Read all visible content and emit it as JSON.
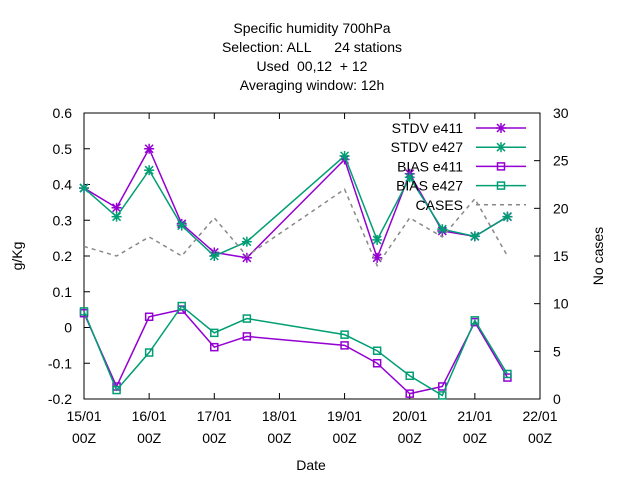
{
  "chart_data": {
    "type": "line",
    "title_lines": [
      "Specific humidity 700hPa",
      "Selection: ALL      24 stations",
      "Used  00,12  + 12",
      "Averaging window: 12h"
    ],
    "xlabel": "Date",
    "ylabel": "g/Kg",
    "y2label": "No cases",
    "x_ticks": [
      {
        "x": 0,
        "line1": "15/01",
        "line2": "00Z"
      },
      {
        "x": 1,
        "line1": "16/01",
        "line2": "00Z"
      },
      {
        "x": 2,
        "line1": "17/01",
        "line2": "00Z"
      },
      {
        "x": 3,
        "line1": "18/01",
        "line2": "00Z"
      },
      {
        "x": 4,
        "line1": "19/01",
        "line2": "00Z"
      },
      {
        "x": 5,
        "line1": "20/01",
        "line2": "00Z"
      },
      {
        "x": 6,
        "line1": "21/01",
        "line2": "00Z"
      },
      {
        "x": 7,
        "line1": "22/01",
        "line2": "00Z"
      }
    ],
    "xlim": [
      0,
      7
    ],
    "ylim": [
      -0.2,
      0.6
    ],
    "y_ticks": [
      "-0.2",
      "-0.1",
      "0",
      "0.1",
      "0.2",
      "0.3",
      "0.4",
      "0.5",
      "0.6"
    ],
    "y2lim": [
      0,
      30
    ],
    "y2_ticks": [
      "0",
      "5",
      "10",
      "15",
      "20",
      "25",
      "30"
    ],
    "legend_position": "top-right",
    "series": [
      {
        "name": "STDV e411",
        "color": "#9400d3",
        "marker": "star",
        "axis": "y",
        "x": [
          0,
          0.5,
          1,
          1.5,
          2,
          2.5,
          4,
          4.5,
          5,
          5.5,
          6,
          6.5
        ],
        "y": [
          0.39,
          0.335,
          0.5,
          0.29,
          0.21,
          0.195,
          0.47,
          0.195,
          0.43,
          0.27,
          0.255,
          0.31
        ]
      },
      {
        "name": "STDV e427",
        "color": "#009e73",
        "marker": "star",
        "axis": "y",
        "x": [
          0,
          0.5,
          1,
          1.5,
          2,
          2.5,
          4,
          4.5,
          5,
          5.5,
          6,
          6.5
        ],
        "y": [
          0.39,
          0.31,
          0.44,
          0.285,
          0.2,
          0.24,
          0.48,
          0.245,
          0.42,
          0.275,
          0.255,
          0.31
        ]
      },
      {
        "name": "BIAS e411",
        "color": "#9400d3",
        "marker": "square",
        "axis": "y",
        "x": [
          0,
          0.5,
          1,
          1.5,
          2,
          2.5,
          4,
          4.5,
          5,
          5.5,
          6,
          6.5
        ],
        "y": [
          0.04,
          -0.165,
          0.03,
          0.05,
          -0.055,
          -0.025,
          -0.05,
          -0.1,
          -0.185,
          -0.165,
          0.015,
          -0.14
        ]
      },
      {
        "name": "BIAS e427",
        "color": "#009e73",
        "marker": "square",
        "axis": "y",
        "x": [
          0,
          0.5,
          1,
          1.5,
          2,
          2.5,
          4,
          4.5,
          5,
          5.5,
          6,
          6.5
        ],
        "y": [
          0.045,
          -0.175,
          -0.07,
          0.06,
          -0.015,
          0.025,
          -0.02,
          -0.065,
          -0.135,
          -0.19,
          0.02,
          -0.13
        ]
      },
      {
        "name": "CASES",
        "color": "#888888",
        "marker": "none",
        "dashed": true,
        "axis": "y2",
        "x": [
          0,
          0.5,
          1,
          1.5,
          2,
          2.5,
          4,
          4.5,
          5,
          5.5,
          6,
          6.5
        ],
        "y": [
          16,
          15,
          17,
          15,
          19,
          15,
          22,
          14,
          19,
          17,
          21,
          15
        ]
      }
    ]
  }
}
